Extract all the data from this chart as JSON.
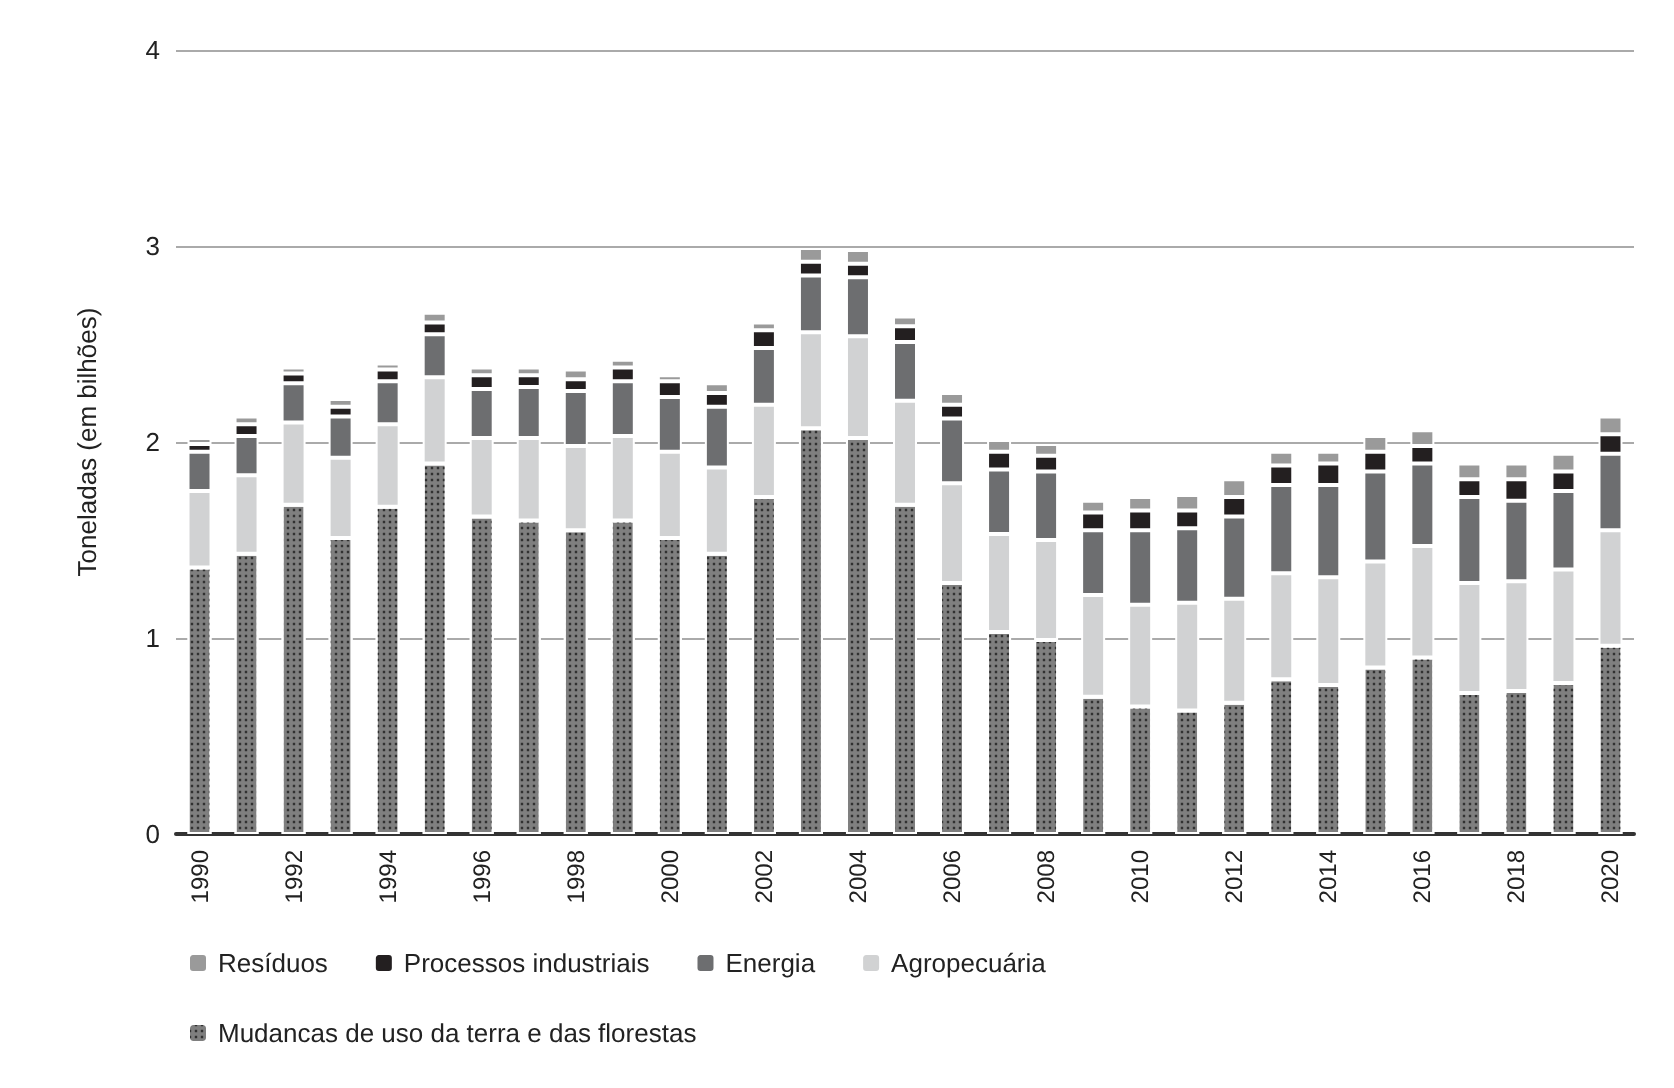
{
  "chart_data": {
    "type": "bar",
    "stacked": true,
    "ylabel": "Toneladas (em bilhões)",
    "categories": [
      "1990",
      null,
      "1992",
      null,
      "1994",
      null,
      "1996",
      null,
      "1998",
      null,
      "2000",
      null,
      "2002",
      null,
      "2004",
      null,
      "2006",
      null,
      "2008",
      null,
      "2010",
      null,
      "2012",
      null,
      "2014",
      null,
      "2016",
      null,
      "2018",
      null,
      "2020"
    ],
    "series": [
      {
        "name": "Mudancas de uso da terra e das florestas",
        "color": "#7f7f7f",
        "values": [
          1.36,
          1.43,
          1.68,
          1.51,
          1.67,
          1.89,
          1.62,
          1.6,
          1.55,
          1.6,
          1.51,
          1.43,
          1.72,
          2.07,
          2.02,
          1.68,
          1.28,
          1.03,
          0.99,
          0.7,
          0.65,
          0.63,
          0.67,
          0.79,
          0.76,
          0.85,
          0.9,
          0.72,
          0.73,
          0.77,
          0.96
        ]
      },
      {
        "name": "Agropecuária",
        "color": "#d1d2d3",
        "values": [
          0.39,
          0.4,
          0.42,
          0.41,
          0.42,
          0.44,
          0.4,
          0.42,
          0.43,
          0.43,
          0.44,
          0.44,
          0.47,
          0.49,
          0.52,
          0.53,
          0.51,
          0.5,
          0.51,
          0.52,
          0.52,
          0.55,
          0.53,
          0.54,
          0.55,
          0.54,
          0.57,
          0.56,
          0.56,
          0.58,
          0.59
        ]
      },
      {
        "name": "Energia",
        "color": "#6d6e70",
        "values": [
          0.2,
          0.2,
          0.2,
          0.21,
          0.22,
          0.22,
          0.25,
          0.26,
          0.28,
          0.28,
          0.28,
          0.31,
          0.29,
          0.29,
          0.3,
          0.3,
          0.33,
          0.33,
          0.35,
          0.33,
          0.38,
          0.38,
          0.42,
          0.45,
          0.47,
          0.46,
          0.42,
          0.44,
          0.41,
          0.4,
          0.39
        ]
      },
      {
        "name": "Processos industriais",
        "color": "#231f20",
        "values": [
          0.04,
          0.06,
          0.05,
          0.05,
          0.06,
          0.06,
          0.07,
          0.06,
          0.06,
          0.07,
          0.08,
          0.07,
          0.09,
          0.07,
          0.07,
          0.08,
          0.07,
          0.09,
          0.08,
          0.09,
          0.1,
          0.09,
          0.1,
          0.1,
          0.11,
          0.1,
          0.09,
          0.09,
          0.11,
          0.1,
          0.1
        ]
      },
      {
        "name": "Resíduos",
        "color": "#9a9a9a",
        "values": [
          0.03,
          0.04,
          0.03,
          0.04,
          0.03,
          0.05,
          0.04,
          0.04,
          0.05,
          0.04,
          0.03,
          0.05,
          0.04,
          0.07,
          0.07,
          0.05,
          0.06,
          0.06,
          0.06,
          0.06,
          0.07,
          0.08,
          0.09,
          0.07,
          0.06,
          0.08,
          0.08,
          0.08,
          0.08,
          0.09,
          0.09
        ]
      }
    ],
    "ylim": [
      0,
      4
    ],
    "yticks": [
      0,
      1,
      2,
      3,
      4
    ],
    "grid": "y",
    "legend": "bottom left"
  }
}
